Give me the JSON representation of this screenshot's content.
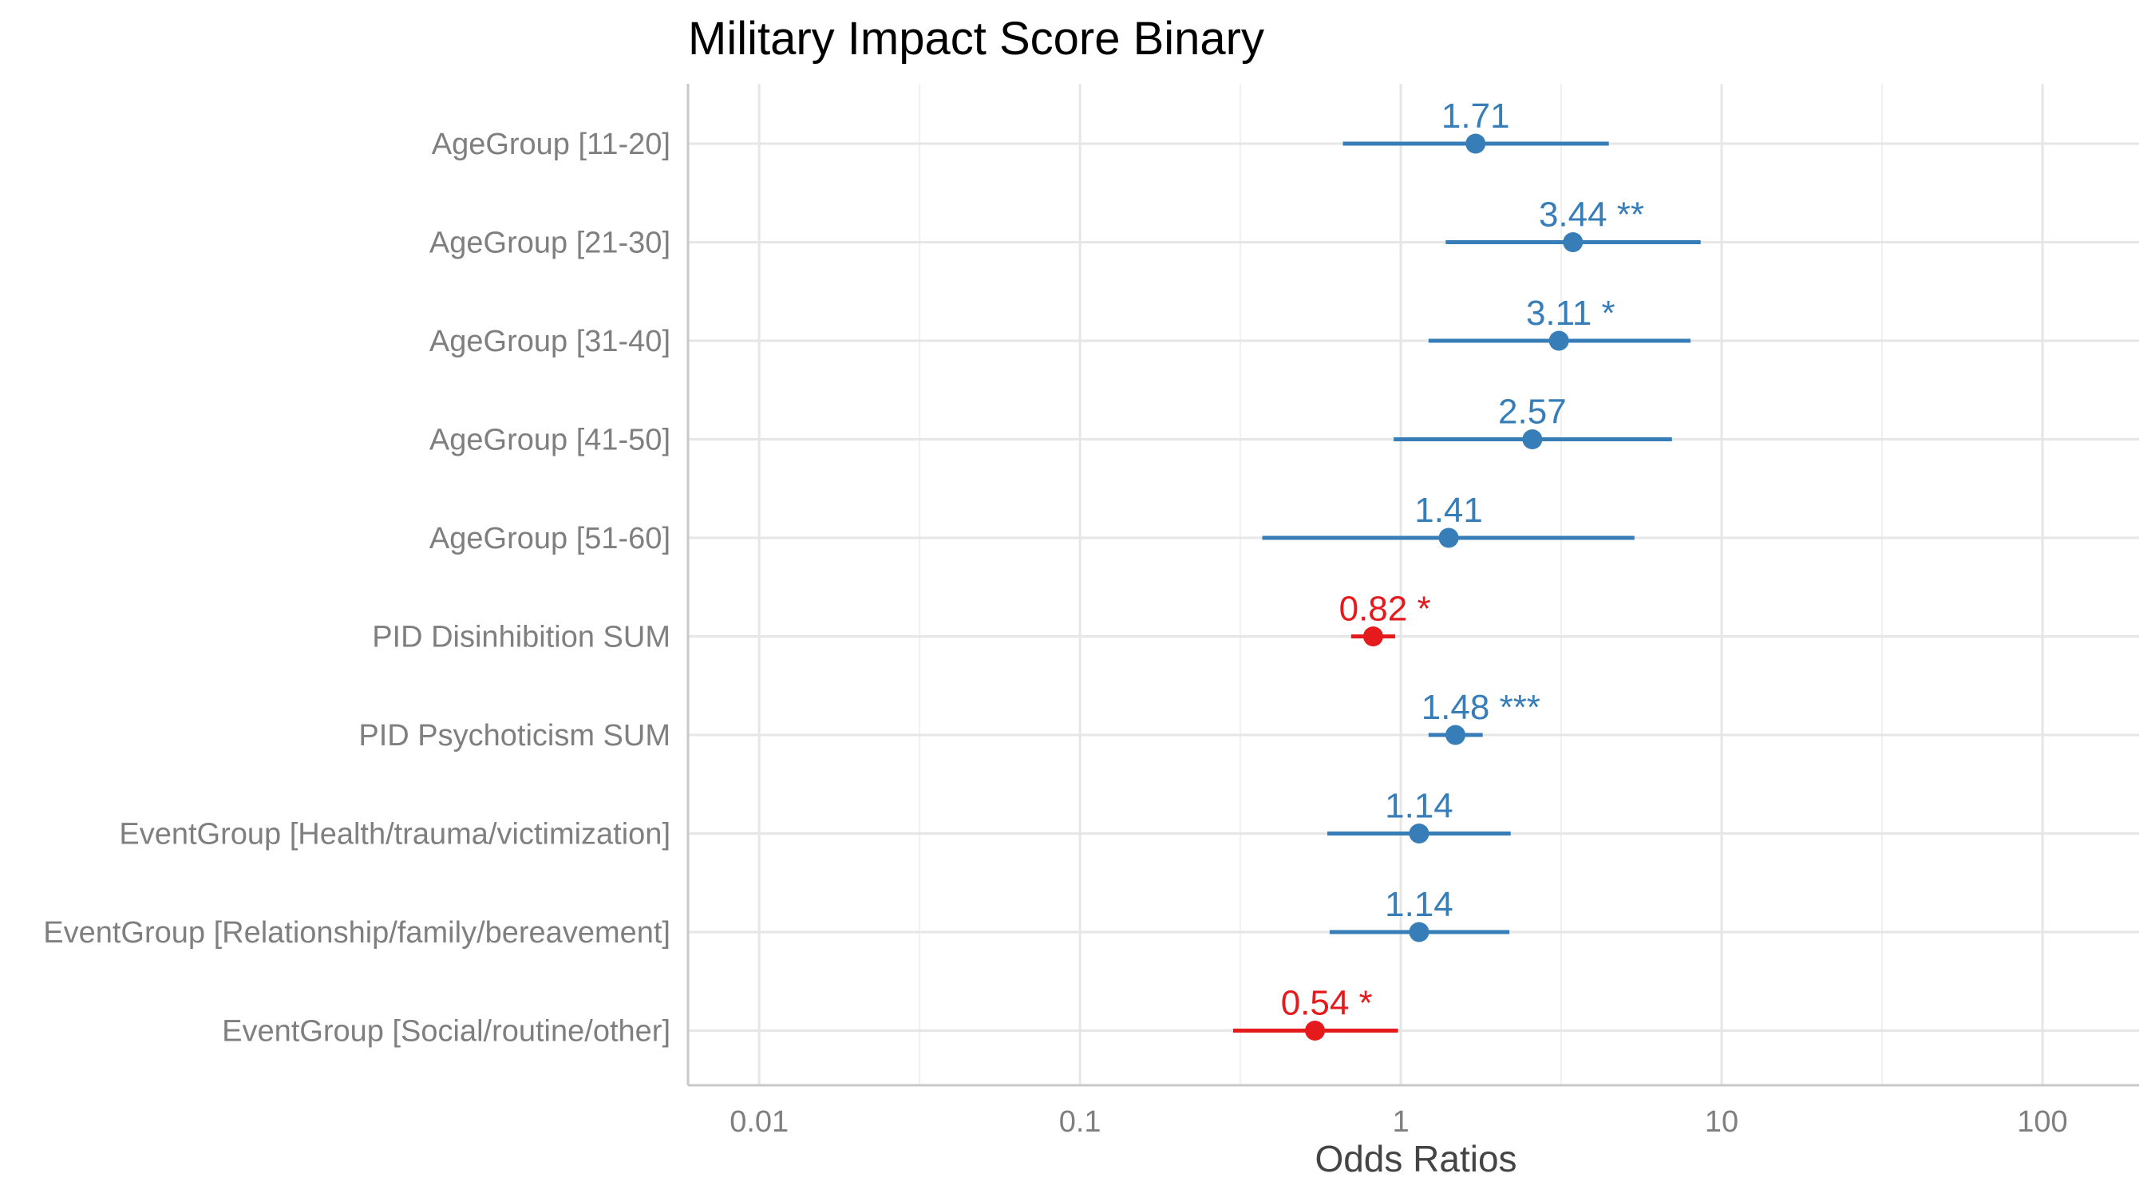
{
  "chart_data": {
    "type": "forest",
    "title": "Military Impact Score Binary",
    "xlabel": "Odds Ratios",
    "ylabel": "",
    "x_scale": "log10",
    "xlim": [
      0.006,
      200
    ],
    "x_ticks": [
      0.01,
      0.1,
      1,
      10,
      100
    ],
    "x_tick_labels": [
      "0.01",
      "0.1",
      "1",
      "10",
      "100"
    ],
    "grid": true,
    "colors": {
      "positive": "#377eb8",
      "negative": "#e41a1c"
    },
    "rows": [
      {
        "term": "AgeGroup [11-20]",
        "estimate": 1.71,
        "ci_low": 0.66,
        "ci_high": 4.45,
        "label": "1.71",
        "direction": "positive"
      },
      {
        "term": "AgeGroup [21-30]",
        "estimate": 3.44,
        "ci_low": 1.38,
        "ci_high": 8.6,
        "label": "3.44 **",
        "direction": "positive"
      },
      {
        "term": "AgeGroup [31-40]",
        "estimate": 3.11,
        "ci_low": 1.22,
        "ci_high": 8.0,
        "label": "3.11 *",
        "direction": "positive"
      },
      {
        "term": "AgeGroup [41-50]",
        "estimate": 2.57,
        "ci_low": 0.95,
        "ci_high": 7.0,
        "label": "2.57",
        "direction": "positive"
      },
      {
        "term": "AgeGroup [51-60]",
        "estimate": 1.41,
        "ci_low": 0.37,
        "ci_high": 5.35,
        "label": "1.41",
        "direction": "positive"
      },
      {
        "term": "PID Disinhibition SUM",
        "estimate": 0.82,
        "ci_low": 0.7,
        "ci_high": 0.96,
        "label": "0.82 *",
        "direction": "negative"
      },
      {
        "term": "PID Psychoticism SUM",
        "estimate": 1.48,
        "ci_low": 1.22,
        "ci_high": 1.8,
        "label": "1.48 ***",
        "direction": "positive"
      },
      {
        "term": "EventGroup [Health/trauma/victimization]",
        "estimate": 1.14,
        "ci_low": 0.59,
        "ci_high": 2.2,
        "label": "1.14",
        "direction": "positive"
      },
      {
        "term": "EventGroup [Relationship/family/bereavement]",
        "estimate": 1.14,
        "ci_low": 0.6,
        "ci_high": 2.18,
        "label": "1.14",
        "direction": "positive"
      },
      {
        "term": "EventGroup [Social/routine/other]",
        "estimate": 0.54,
        "ci_low": 0.3,
        "ci_high": 0.98,
        "label": "0.54 *",
        "direction": "negative"
      }
    ]
  }
}
